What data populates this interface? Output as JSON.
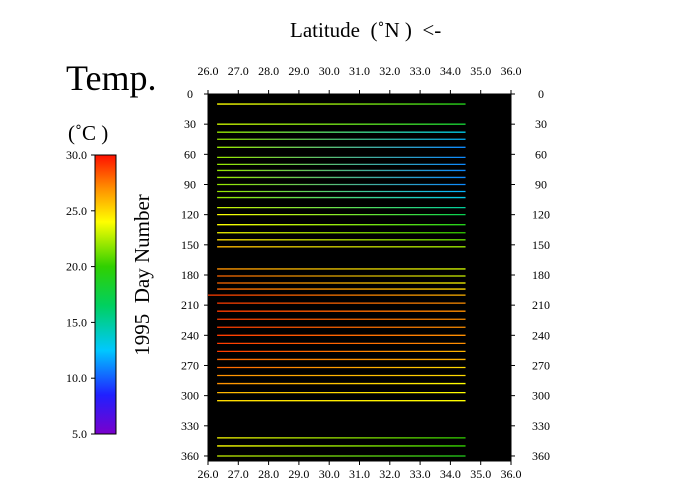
{
  "chart_data": {
    "type": "heatmap",
    "title": "Temp.",
    "colorbar": {
      "unit": "(˚C )",
      "ticks": [
        "30.0",
        "25.0",
        "20.0",
        "15.0",
        "10.0",
        "5.0"
      ],
      "range": [
        5,
        30
      ],
      "colormap": "rainbow (violet-blue-cyan-green-yellow-orange-red)"
    },
    "xlabel": "Latitude  (˚N )  <-",
    "ylabel": "1995  Day Number",
    "x_axis": {
      "position": "top and bottom",
      "range": [
        26,
        36
      ],
      "tick_labels": [
        "26.0",
        "27.0",
        "28.0",
        "29.0",
        "30.0",
        "31.0",
        "32.0",
        "33.0",
        "34.0",
        "35.0",
        "36.0"
      ]
    },
    "y_axis": {
      "position": "left and right",
      "range": [
        0,
        365
      ],
      "inverted": true,
      "tick_labels": [
        "0",
        "30",
        "60",
        "90",
        "120",
        "150",
        "180",
        "210",
        "240",
        "270",
        "300",
        "330",
        "360"
      ]
    },
    "background": "#000000",
    "transects": [
      {
        "day": 10,
        "lat_start": 26.3,
        "lat_end": 34.5,
        "temp_start": 24,
        "temp_end": 19
      },
      {
        "day": 30,
        "lat_start": 26.3,
        "lat_end": 34.5,
        "temp_start": 23,
        "temp_end": 18
      },
      {
        "day": 38,
        "lat_start": 26.3,
        "lat_end": 34.5,
        "temp_start": 22,
        "temp_end": 13
      },
      {
        "day": 45,
        "lat_start": 26.3,
        "lat_end": 34.5,
        "temp_start": 22,
        "temp_end": 12
      },
      {
        "day": 53,
        "lat_start": 26.3,
        "lat_end": 34.5,
        "temp_start": 22,
        "temp_end": 11
      },
      {
        "day": 63,
        "lat_start": 26.3,
        "lat_end": 34.5,
        "temp_start": 22,
        "temp_end": 11
      },
      {
        "day": 70,
        "lat_start": 26.3,
        "lat_end": 34.5,
        "temp_start": 22,
        "temp_end": 11
      },
      {
        "day": 76,
        "lat_start": 26.3,
        "lat_end": 34.5,
        "temp_start": 22,
        "temp_end": 11
      },
      {
        "day": 83,
        "lat_start": 26.3,
        "lat_end": 34.5,
        "temp_start": 22,
        "temp_end": 11
      },
      {
        "day": 90,
        "lat_start": 26.3,
        "lat_end": 34.5,
        "temp_start": 22,
        "temp_end": 11
      },
      {
        "day": 97,
        "lat_start": 26.3,
        "lat_end": 34.5,
        "temp_start": 22,
        "temp_end": 12
      },
      {
        "day": 103,
        "lat_start": 26.3,
        "lat_end": 34.5,
        "temp_start": 22,
        "temp_end": 13
      },
      {
        "day": 113,
        "lat_start": 26.3,
        "lat_end": 34.5,
        "temp_start": 23,
        "temp_end": 15
      },
      {
        "day": 120,
        "lat_start": 26.3,
        "lat_end": 34.5,
        "temp_start": 24,
        "temp_end": 17
      },
      {
        "day": 130,
        "lat_start": 26.3,
        "lat_end": 34.5,
        "temp_start": 24,
        "temp_end": 19
      },
      {
        "day": 138,
        "lat_start": 26.3,
        "lat_end": 34.5,
        "temp_start": 24,
        "temp_end": 20
      },
      {
        "day": 145,
        "lat_start": 26.3,
        "lat_end": 34.5,
        "temp_start": 25,
        "temp_end": 21
      },
      {
        "day": 152,
        "lat_start": 26.3,
        "lat_end": 34.5,
        "temp_start": 26,
        "temp_end": 22
      },
      {
        "day": 174,
        "lat_start": 26.3,
        "lat_end": 34.5,
        "temp_start": 27,
        "temp_end": 23
      },
      {
        "day": 181,
        "lat_start": 26.3,
        "lat_end": 34.5,
        "temp_start": 28,
        "temp_end": 23
      },
      {
        "day": 188,
        "lat_start": 26.3,
        "lat_end": 34.5,
        "temp_start": 28,
        "temp_end": 24
      },
      {
        "day": 194,
        "lat_start": 26.3,
        "lat_end": 34.5,
        "temp_start": 28,
        "temp_end": 25
      },
      {
        "day": 200,
        "lat_start": 26.0,
        "lat_end": 34.5,
        "temp_start": 29,
        "temp_end": 26
      },
      {
        "day": 208,
        "lat_start": 26.3,
        "lat_end": 34.5,
        "temp_start": 29,
        "temp_end": 27
      },
      {
        "day": 216,
        "lat_start": 26.3,
        "lat_end": 34.5,
        "temp_start": 29,
        "temp_end": 27
      },
      {
        "day": 224,
        "lat_start": 26.3,
        "lat_end": 34.5,
        "temp_start": 29,
        "temp_end": 27
      },
      {
        "day": 232,
        "lat_start": 26.3,
        "lat_end": 34.5,
        "temp_start": 29,
        "temp_end": 27
      },
      {
        "day": 240,
        "lat_start": 26.3,
        "lat_end": 34.5,
        "temp_start": 29,
        "temp_end": 27
      },
      {
        "day": 248,
        "lat_start": 26.3,
        "lat_end": 34.5,
        "temp_start": 29,
        "temp_end": 27
      },
      {
        "day": 256,
        "lat_start": 26.3,
        "lat_end": 34.5,
        "temp_start": 29,
        "temp_end": 26
      },
      {
        "day": 264,
        "lat_start": 26.3,
        "lat_end": 34.5,
        "temp_start": 28,
        "temp_end": 26
      },
      {
        "day": 272,
        "lat_start": 26.3,
        "lat_end": 34.5,
        "temp_start": 28,
        "temp_end": 25
      },
      {
        "day": 280,
        "lat_start": 26.3,
        "lat_end": 34.5,
        "temp_start": 27,
        "temp_end": 25
      },
      {
        "day": 288,
        "lat_start": 26.3,
        "lat_end": 34.5,
        "temp_start": 27,
        "temp_end": 24
      },
      {
        "day": 297,
        "lat_start": 26.3,
        "lat_end": 34.5,
        "temp_start": 26,
        "temp_end": 24
      },
      {
        "day": 305,
        "lat_start": 26.3,
        "lat_end": 34.5,
        "temp_start": 25,
        "temp_end": 24
      },
      {
        "day": 342,
        "lat_start": 26.3,
        "lat_end": 34.5,
        "temp_start": 24,
        "temp_end": 20
      },
      {
        "day": 350,
        "lat_start": 26.3,
        "lat_end": 34.5,
        "temp_start": 24,
        "temp_end": 20
      },
      {
        "day": 360,
        "lat_start": 26.3,
        "lat_end": 34.5,
        "temp_start": 23,
        "temp_end": 19
      }
    ]
  }
}
